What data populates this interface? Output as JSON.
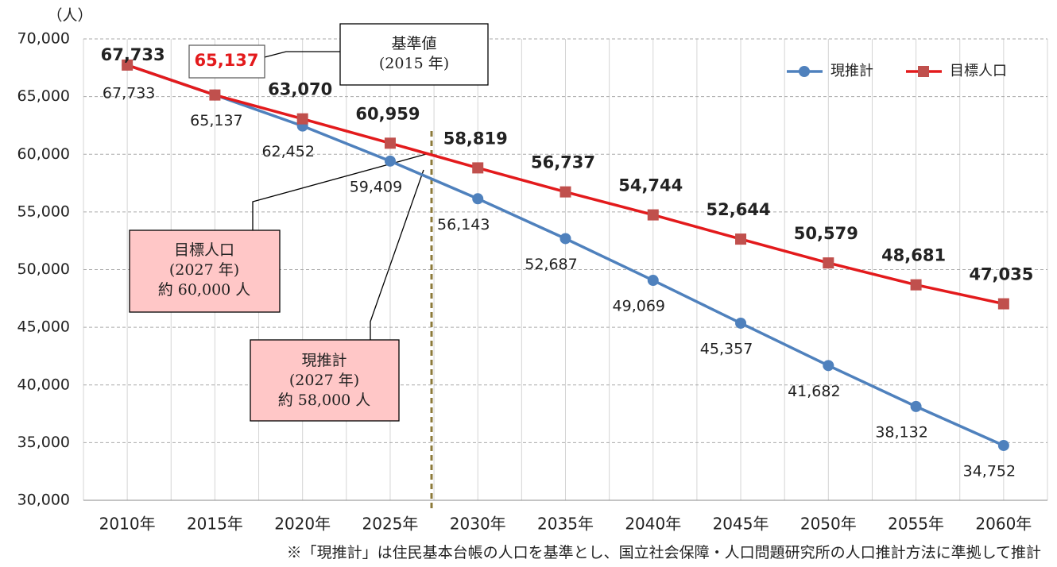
{
  "chart_data": {
    "type": "line",
    "y_label": "（人）",
    "categories": [
      "2010年",
      "2015年",
      "2020年",
      "2025年",
      "2030年",
      "2035年",
      "2040年",
      "2045年",
      "2050年",
      "2055年",
      "2060年"
    ],
    "series": [
      {
        "name": "現推計",
        "color": "#4f81bd",
        "values": [
          67733,
          65137,
          62452,
          59409,
          56143,
          52687,
          49069,
          45357,
          41682,
          38132,
          34752
        ],
        "value_labels": [
          "67,733",
          "65,137",
          "62,452",
          "59,409",
          "56,143",
          "52,687",
          "49,069",
          "45,357",
          "41,682",
          "38,132",
          "34,752"
        ]
      },
      {
        "name": "目標人口",
        "color": "#e31a1c",
        "values": [
          67733,
          65137,
          63070,
          60959,
          58819,
          56737,
          54744,
          52644,
          50579,
          48681,
          47035
        ],
        "value_labels": [
          "67,733",
          "65,137",
          "63,070",
          "60,959",
          "58,819",
          "56,737",
          "54,744",
          "52,644",
          "50,579",
          "48,681",
          "47,035"
        ]
      }
    ],
    "ylim": [
      30000,
      70000
    ],
    "yticks": [
      {
        "value": 30000,
        "label": "30,000"
      },
      {
        "value": 35000,
        "label": "35,000"
      },
      {
        "value": 40000,
        "label": "40,000"
      },
      {
        "value": 45000,
        "label": "45,000"
      },
      {
        "value": 50000,
        "label": "50,000"
      },
      {
        "value": 55000,
        "label": "55,000"
      },
      {
        "value": 60000,
        "label": "60,000"
      },
      {
        "value": 65000,
        "label": "65,000"
      },
      {
        "value": 70000,
        "label": "70,000"
      }
    ],
    "grid": true,
    "legend": "top-right",
    "annotations": [
      [
        "基準値",
        "(2015 年)"
      ],
      [
        "目標人口",
        "(2027 年)",
        "約 60,000 人"
      ],
      [
        "現推計",
        "(2027 年)",
        "約 58,000 人"
      ]
    ],
    "note": "※「現推計」は住民基本台帳の人口を基準とし、国立社会保障・人口問題研究所の人口推計方法に準拠して推計"
  }
}
